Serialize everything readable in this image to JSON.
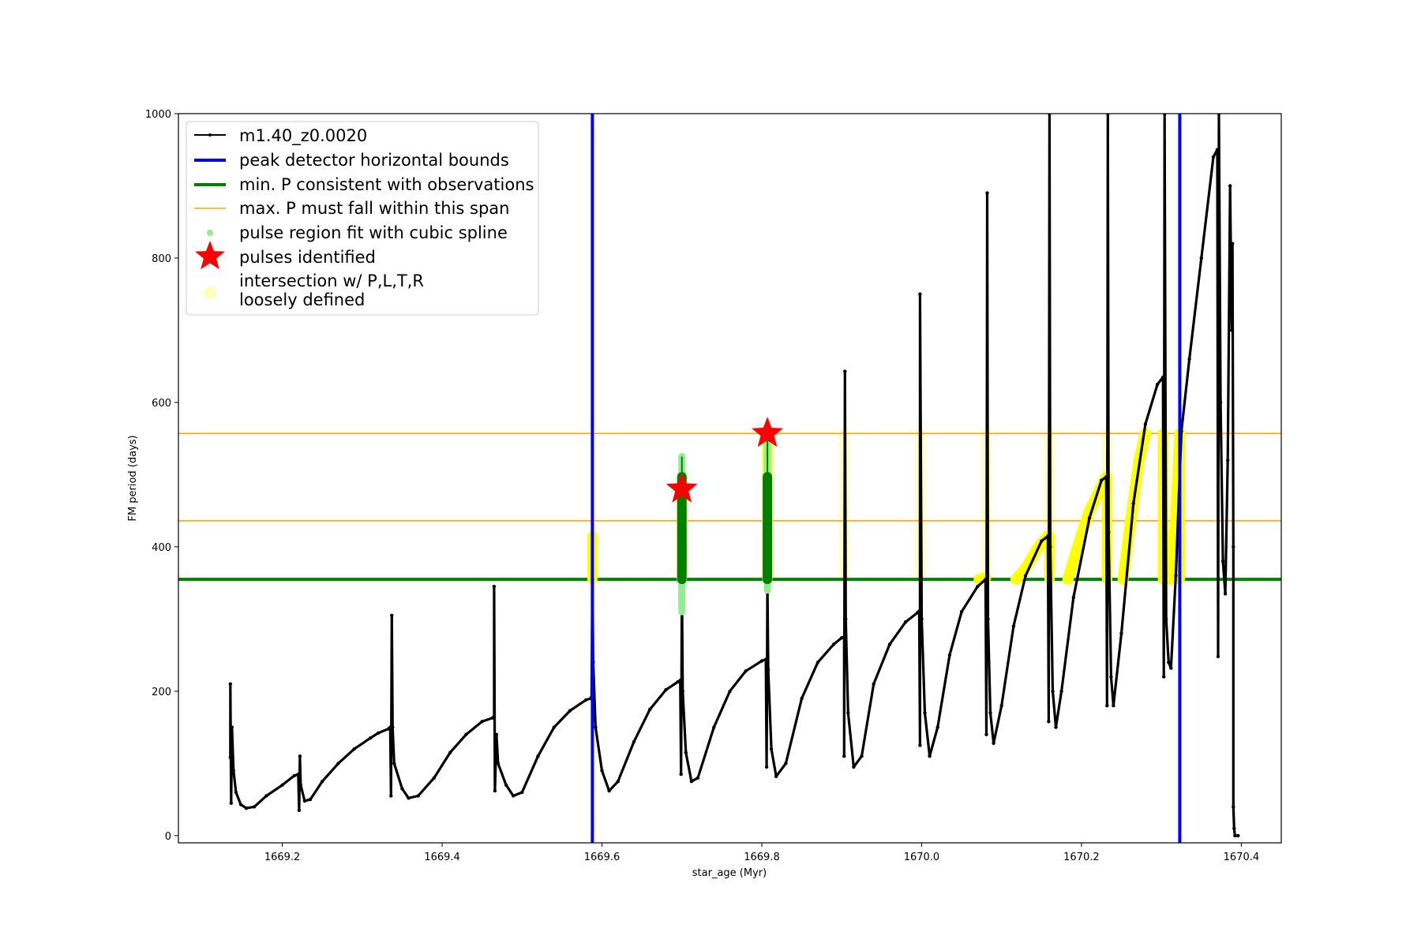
{
  "chart_data": {
    "type": "line",
    "xlabel": "star_age (Myr)",
    "ylabel": "FM period (days)",
    "xlim": [
      1669.07,
      1670.45
    ],
    "ylim": [
      -10,
      1000
    ],
    "xticks": [
      1669.2,
      1669.4,
      1669.6,
      1669.8,
      1670.0,
      1670.2,
      1670.4
    ],
    "xtick_labels": [
      "1669.2",
      "1669.4",
      "1669.6",
      "1669.8",
      "1670.0",
      "1670.2",
      "1670.4"
    ],
    "yticks": [
      0,
      200,
      400,
      600,
      800,
      1000
    ],
    "ytick_labels": [
      "0",
      "200",
      "400",
      "600",
      "800",
      "1000"
    ],
    "grid": false,
    "legend_position": "top-left",
    "colors": {
      "model": "#000000",
      "bounds": "#0000ff",
      "min_period": "#008000",
      "max_period": "#ffa500",
      "spline": "#90ee90",
      "pulse": "#ff0000",
      "intersection": "#ffff00",
      "intersection_loose": "#ffffbb"
    },
    "series": [
      {
        "name": "m1.40_z0.0020",
        "style": "line-with-markers",
        "points": [
          [
            1669.135,
            108
          ],
          [
            1669.135,
            210
          ],
          [
            1669.136,
            45
          ],
          [
            1669.137,
            150
          ],
          [
            1669.139,
            90
          ],
          [
            1669.142,
            60
          ],
          [
            1669.148,
            43
          ],
          [
            1669.155,
            38
          ],
          [
            1669.165,
            40
          ],
          [
            1669.18,
            55
          ],
          [
            1669.2,
            70
          ],
          [
            1669.215,
            83
          ],
          [
            1669.22,
            85
          ],
          [
            1669.221,
            35
          ],
          [
            1669.222,
            110
          ],
          [
            1669.223,
            70
          ],
          [
            1669.228,
            48
          ],
          [
            1669.235,
            50
          ],
          [
            1669.25,
            75
          ],
          [
            1669.27,
            100
          ],
          [
            1669.29,
            120
          ],
          [
            1669.31,
            135
          ],
          [
            1669.32,
            142
          ],
          [
            1669.333,
            148
          ],
          [
            1669.335,
            150
          ],
          [
            1669.336,
            55
          ],
          [
            1669.337,
            305
          ],
          [
            1669.338,
            150
          ],
          [
            1669.34,
            100
          ],
          [
            1669.35,
            65
          ],
          [
            1669.358,
            52
          ],
          [
            1669.37,
            55
          ],
          [
            1669.39,
            80
          ],
          [
            1669.41,
            115
          ],
          [
            1669.43,
            140
          ],
          [
            1669.45,
            158
          ],
          [
            1669.463,
            163
          ],
          [
            1669.465,
            165
          ],
          [
            1669.465,
            345
          ],
          [
            1669.466,
            62
          ],
          [
            1669.468,
            140
          ],
          [
            1669.47,
            100
          ],
          [
            1669.48,
            70
          ],
          [
            1669.489,
            55
          ],
          [
            1669.5,
            60
          ],
          [
            1669.52,
            110
          ],
          [
            1669.54,
            150
          ],
          [
            1669.56,
            173
          ],
          [
            1669.58,
            188
          ],
          [
            1669.586,
            190
          ],
          [
            1669.587,
            192
          ],
          [
            1669.588,
            355
          ],
          [
            1669.589,
            240
          ],
          [
            1669.592,
            150
          ],
          [
            1669.6,
            90
          ],
          [
            1669.609,
            62
          ],
          [
            1669.62,
            75
          ],
          [
            1669.64,
            130
          ],
          [
            1669.66,
            175
          ],
          [
            1669.68,
            202
          ],
          [
            1669.695,
            213
          ],
          [
            1669.698,
            215
          ],
          [
            1669.699,
            85
          ],
          [
            1669.7,
            340
          ],
          [
            1669.701,
            200
          ],
          [
            1669.705,
            115
          ],
          [
            1669.712,
            75
          ],
          [
            1669.72,
            80
          ],
          [
            1669.74,
            150
          ],
          [
            1669.76,
            200
          ],
          [
            1669.78,
            228
          ],
          [
            1669.8,
            242
          ],
          [
            1669.805,
            244
          ],
          [
            1669.806,
            95
          ],
          [
            1669.807,
            345
          ],
          [
            1669.808,
            230
          ],
          [
            1669.812,
            120
          ],
          [
            1669.818,
            82
          ],
          [
            1669.83,
            100
          ],
          [
            1669.85,
            190
          ],
          [
            1669.87,
            240
          ],
          [
            1669.89,
            265
          ],
          [
            1669.9,
            274
          ],
          [
            1669.903,
            275
          ],
          [
            1669.903,
            110
          ],
          [
            1669.904,
            643
          ],
          [
            1669.905,
            300
          ],
          [
            1669.908,
            170
          ],
          [
            1669.915,
            95
          ],
          [
            1669.925,
            110
          ],
          [
            1669.94,
            210
          ],
          [
            1669.96,
            265
          ],
          [
            1669.98,
            296
          ],
          [
            1669.995,
            309
          ],
          [
            1669.997,
            311
          ],
          [
            1669.998,
            125
          ],
          [
            1669.998,
            750
          ],
          [
            1670.0,
            300
          ],
          [
            1670.004,
            170
          ],
          [
            1670.01,
            110
          ],
          [
            1670.02,
            150
          ],
          [
            1670.035,
            250
          ],
          [
            1670.05,
            310
          ],
          [
            1670.07,
            345
          ],
          [
            1670.08,
            355
          ],
          [
            1670.081,
            140
          ],
          [
            1670.082,
            890
          ],
          [
            1670.083,
            300
          ],
          [
            1670.086,
            170
          ],
          [
            1670.09,
            128
          ],
          [
            1670.1,
            180
          ],
          [
            1670.115,
            290
          ],
          [
            1670.13,
            360
          ],
          [
            1670.15,
            408
          ],
          [
            1670.158,
            415
          ],
          [
            1670.159,
            158
          ],
          [
            1670.16,
            1000
          ],
          [
            1670.161,
            400
          ],
          [
            1670.164,
            200
          ],
          [
            1670.168,
            150
          ],
          [
            1670.175,
            200
          ],
          [
            1670.19,
            330
          ],
          [
            1670.21,
            440
          ],
          [
            1670.225,
            492
          ],
          [
            1670.231,
            497
          ],
          [
            1670.232,
            180
          ],
          [
            1670.233,
            1000
          ],
          [
            1670.234,
            420
          ],
          [
            1670.237,
            220
          ],
          [
            1670.24,
            180
          ],
          [
            1670.25,
            280
          ],
          [
            1670.265,
            460
          ],
          [
            1670.28,
            570
          ],
          [
            1670.295,
            625
          ],
          [
            1670.302,
            635
          ],
          [
            1670.303,
            220
          ],
          [
            1670.304,
            1000
          ],
          [
            1670.306,
            300
          ],
          [
            1670.309,
            240
          ],
          [
            1670.312,
            232
          ],
          [
            1670.318,
            360
          ],
          [
            1670.325,
            560
          ],
          [
            1670.335,
            660
          ],
          [
            1670.35,
            800
          ],
          [
            1670.365,
            940
          ],
          [
            1670.37,
            950
          ],
          [
            1670.371,
            248
          ],
          [
            1670.372,
            1000
          ],
          [
            1670.374,
            600
          ],
          [
            1670.377,
            380
          ],
          [
            1670.38,
            335
          ],
          [
            1670.383,
            520
          ],
          [
            1670.386,
            900
          ],
          [
            1670.388,
            700
          ],
          [
            1670.389,
            820
          ],
          [
            1670.39,
            400
          ],
          [
            1670.39,
            40
          ],
          [
            1670.391,
            10
          ],
          [
            1670.392,
            0
          ],
          [
            1670.396,
            0
          ]
        ]
      },
      {
        "name": "peak detector horizontal bounds",
        "style": "vline",
        "x": [
          1669.588,
          1670.323
        ]
      },
      {
        "name": "min. P consistent with observations",
        "style": "hline",
        "y": [
          355
        ]
      },
      {
        "name": "max. P must fall within this span",
        "style": "hline",
        "y": [
          436,
          557
        ]
      },
      {
        "name": "pulse region fit with cubic spline",
        "style": "scatter",
        "segments": [
          {
            "x": 1669.7,
            "y_range": [
              310,
              525
            ]
          },
          {
            "x": 1669.807,
            "y_range": [
              340,
              565
            ]
          }
        ]
      },
      {
        "name": "pulses identified",
        "style": "star",
        "points": [
          [
            1669.7,
            480
          ],
          [
            1669.807,
            557
          ]
        ]
      },
      {
        "name": "intersection w/ P,L,T,R\nloosely defined",
        "style": "scatter",
        "vertical_segments": [
          {
            "x": 1669.588,
            "y_range": [
              355,
              415
            ]
          },
          {
            "x": 1669.7,
            "y_range": [
              355,
              495
            ]
          },
          {
            "x": 1669.807,
            "y_range": [
              355,
              557
            ]
          },
          {
            "x": 1670.16,
            "y_range": [
              355,
              415
            ]
          },
          {
            "x": 1670.232,
            "y_range": [
              355,
              497
            ]
          },
          {
            "x": 1670.302,
            "y_range": [
              355,
              557
            ]
          },
          {
            "x": 1670.323,
            "y_range": [
              355,
              557
            ]
          }
        ],
        "curve_segments": [
          [
            [
              1670.072,
              355
            ],
            [
              1670.08,
              357
            ]
          ],
          [
            [
              1670.118,
              355
            ],
            [
              1670.13,
              370
            ],
            [
              1670.145,
              398
            ],
            [
              1670.158,
              415
            ]
          ],
          [
            [
              1670.183,
              355
            ],
            [
              1670.195,
              400
            ],
            [
              1670.21,
              450
            ],
            [
              1670.231,
              497
            ]
          ],
          [
            [
              1670.252,
              355
            ],
            [
              1670.262,
              440
            ],
            [
              1670.272,
              520
            ],
            [
              1670.28,
              557
            ]
          ],
          [
            [
              1670.31,
              355
            ],
            [
              1670.318,
              440
            ],
            [
              1670.323,
              557
            ]
          ]
        ],
        "loose_segments": [
          {
            "x": 1669.903,
            "y_range": [
              360,
              557
            ]
          },
          {
            "x": 1669.998,
            "y_range": [
              360,
              557
            ]
          },
          {
            "x": 1670.081,
            "y_range": [
              360,
              557
            ]
          },
          {
            "x": 1670.16,
            "y_range": [
              360,
              557
            ]
          },
          {
            "x": 1670.232,
            "y_range": [
              360,
              557
            ]
          },
          {
            "x": 1670.303,
            "y_range": [
              360,
              557
            ]
          }
        ]
      }
    ]
  }
}
